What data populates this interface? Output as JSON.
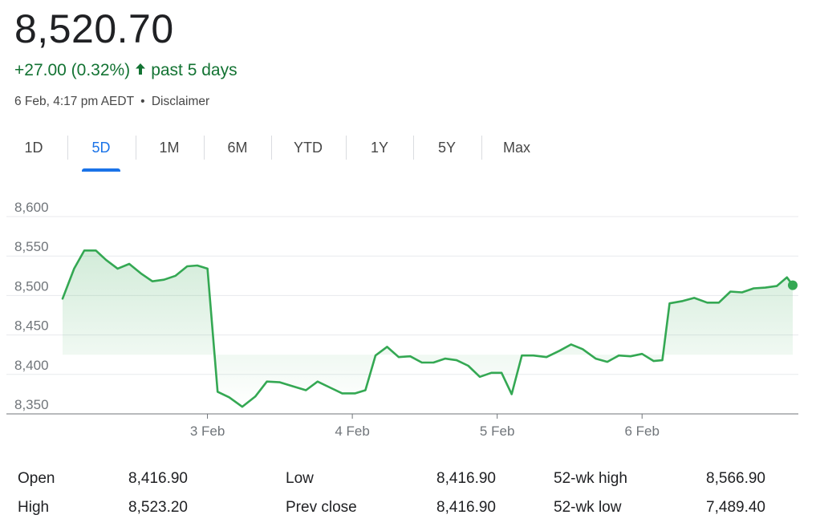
{
  "price": "8,520.70",
  "change": {
    "text": "+27.00 (0.32%)",
    "period": "past 5 days",
    "direction": "up",
    "color": "#137333"
  },
  "meta": {
    "timestamp": "6 Feb, 4:17 pm AEDT",
    "separator": "•",
    "disclaimer": "Disclaimer"
  },
  "tabs": [
    {
      "label": "1D",
      "active": false
    },
    {
      "label": "5D",
      "active": true
    },
    {
      "label": "1M",
      "active": false
    },
    {
      "label": "6M",
      "active": false
    },
    {
      "label": "YTD",
      "active": false
    },
    {
      "label": "1Y",
      "active": false
    },
    {
      "label": "5Y",
      "active": false
    },
    {
      "label": "Max",
      "active": false
    }
  ],
  "chart_data": {
    "type": "line",
    "y_ticks": [
      "8,600",
      "8,550",
      "8,500",
      "8,450",
      "8,400",
      "8,350"
    ],
    "ylim": [
      8350,
      8600
    ],
    "x_ticks": [
      {
        "label": "3 Feb",
        "x": 10
      },
      {
        "label": "4 Feb",
        "x": 20
      },
      {
        "label": "5 Feb",
        "x": 30
      },
      {
        "label": "6 Feb",
        "x": 40
      }
    ],
    "xlim": [
      0,
      50.4
    ],
    "grid": true,
    "line_color": "#34a853",
    "series": [
      {
        "values": [
          [
            0,
            8496
          ],
          [
            0.8,
            8534
          ],
          [
            1.5,
            8557
          ],
          [
            2.3,
            8557
          ],
          [
            3.0,
            8545
          ],
          [
            3.8,
            8534
          ],
          [
            4.6,
            8540
          ],
          [
            5.4,
            8528
          ],
          [
            6.2,
            8518
          ],
          [
            7.0,
            8520
          ],
          [
            7.8,
            8525
          ],
          [
            8.6,
            8537
          ],
          [
            9.3,
            8538
          ],
          [
            10.0,
            8534
          ],
          [
            10.7,
            8378
          ],
          [
            11.5,
            8371
          ],
          [
            12.4,
            8359
          ],
          [
            13.3,
            8372
          ],
          [
            14.1,
            8391
          ],
          [
            15.0,
            8390
          ],
          [
            15.9,
            8385
          ],
          [
            16.8,
            8380
          ],
          [
            17.6,
            8391
          ],
          [
            18.5,
            8383
          ],
          [
            19.3,
            8376
          ],
          [
            20.2,
            8376
          ],
          [
            20.9,
            8380
          ],
          [
            21.6,
            8424
          ],
          [
            22.4,
            8435
          ],
          [
            23.2,
            8422
          ],
          [
            24.0,
            8423
          ],
          [
            24.8,
            8415
          ],
          [
            25.6,
            8415
          ],
          [
            26.4,
            8420
          ],
          [
            27.2,
            8418
          ],
          [
            28.0,
            8411
          ],
          [
            28.8,
            8397
          ],
          [
            29.6,
            8402
          ],
          [
            30.3,
            8402
          ],
          [
            31.0,
            8375
          ],
          [
            31.7,
            8424
          ],
          [
            32.5,
            8424
          ],
          [
            33.4,
            8422
          ],
          [
            34.3,
            8430
          ],
          [
            35.1,
            8438
          ],
          [
            35.9,
            8432
          ],
          [
            36.8,
            8420
          ],
          [
            37.6,
            8416
          ],
          [
            38.4,
            8424
          ],
          [
            39.2,
            8423
          ],
          [
            40.0,
            8426
          ],
          [
            40.8,
            8417
          ],
          [
            41.4,
            8418
          ],
          [
            41.9,
            8490
          ],
          [
            42.8,
            8493
          ],
          [
            43.6,
            8497
          ],
          [
            44.5,
            8491
          ],
          [
            45.3,
            8491
          ],
          [
            46.1,
            8505
          ],
          [
            46.9,
            8504
          ],
          [
            47.7,
            8509
          ],
          [
            48.5,
            8510
          ],
          [
            49.3,
            8512
          ],
          [
            50.0,
            8523
          ],
          [
            50.4,
            8513
          ]
        ]
      }
    ],
    "last_point": [
      50.4,
      8513
    ]
  },
  "stats": {
    "open": {
      "label": "Open",
      "value": "8,416.90"
    },
    "high": {
      "label": "High",
      "value": "8,523.20"
    },
    "low": {
      "label": "Low",
      "value": "8,416.90"
    },
    "prev_close": {
      "label": "Prev close",
      "value": "8,416.90"
    },
    "wk52_high": {
      "label": "52-wk high",
      "value": "8,566.90"
    },
    "wk52_low": {
      "label": "52-wk low",
      "value": "7,489.40"
    }
  }
}
